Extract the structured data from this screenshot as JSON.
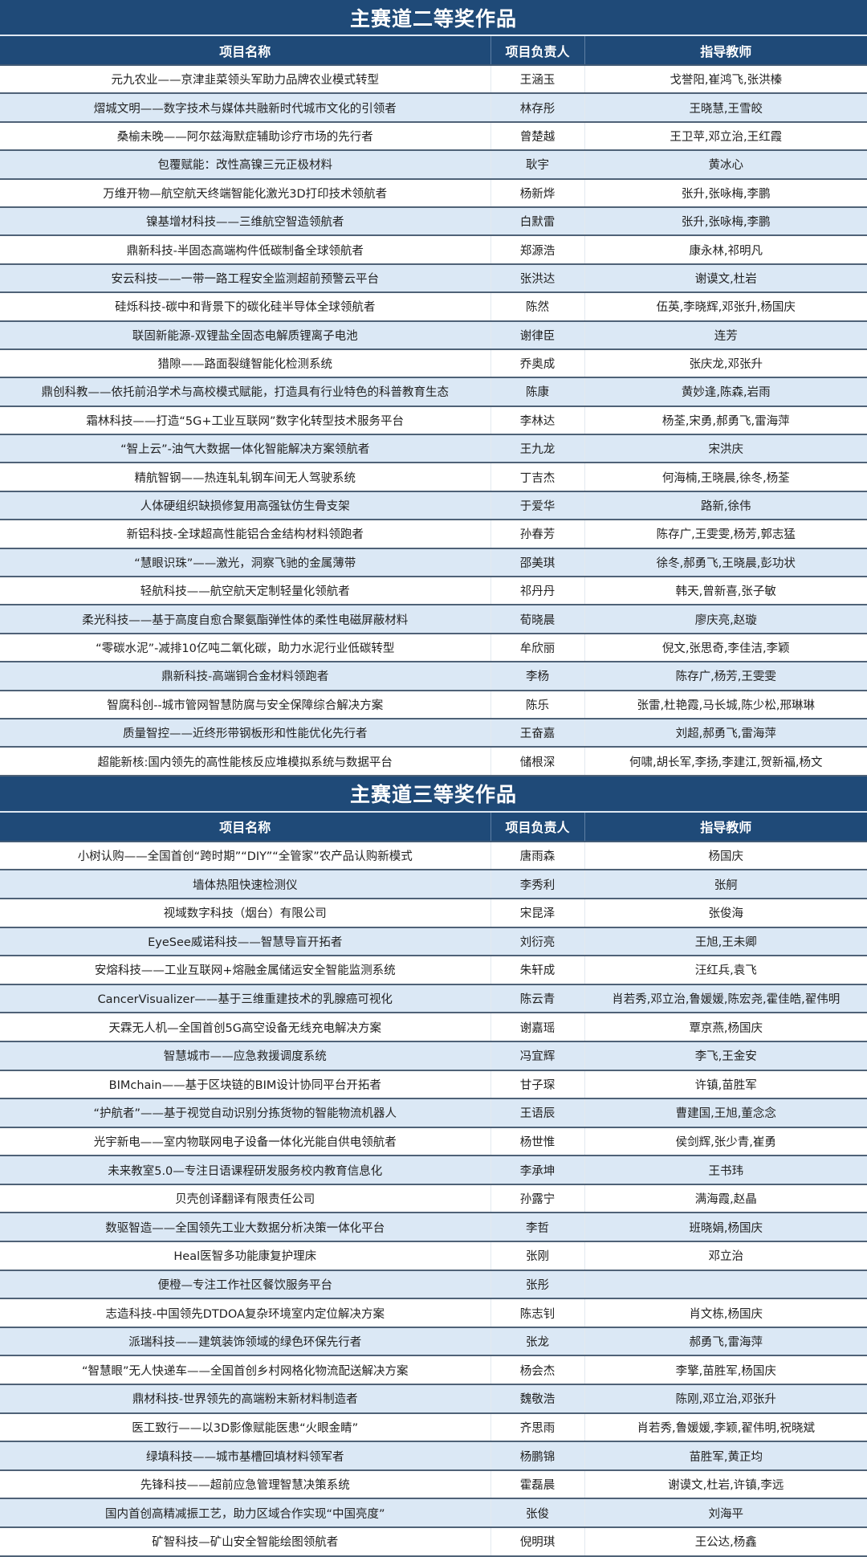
{
  "sections": [
    {
      "title": "主赛道二等奖作品",
      "headers": [
        "项目名称",
        "项目负责人",
        "指导教师"
      ],
      "rows": [
        [
          "元九农业——京津韭菜领头军助力品牌农业模式转型",
          "王涵玉",
          "戈誉阳,崔鸿飞,张洪榛"
        ],
        [
          "熠城文明——数字技术与媒体共融新时代城市文化的引领者",
          "林存彤",
          "王晓慧,王雪皎"
        ],
        [
          "桑榆未晚——阿尔兹海默症辅助诊疗市场的先行者",
          "曾楚越",
          "王卫苹,邓立治,王红霞"
        ],
        [
          "包覆赋能：改性高镍三元正极材料",
          "耿宇",
          "黄冰心"
        ],
        [
          "万维开物—航空航天终端智能化激光3D打印技术领航者",
          "杨新烨",
          "张升,张咏梅,李鹏"
        ],
        [
          "镍基增材科技——三维航空智造领航者",
          "白默雷",
          "张升,张咏梅,李鹏"
        ],
        [
          "鼎新科技-半固态高端构件低碳制备全球领航者",
          "郑源浩",
          "康永林,祁明凡"
        ],
        [
          "安云科技——一带一路工程安全监测超前预警云平台",
          "张洪达",
          "谢谟文,杜岩"
        ],
        [
          "硅烁科技-碳中和背景下的碳化硅半导体全球领航者",
          "陈然",
          "伍英,李晓辉,邓张升,杨国庆"
        ],
        [
          "联固新能源-双锂盐全固态电解质锂离子电池",
          "谢律臣",
          "连芳"
        ],
        [
          "猎隙——路面裂缝智能化检测系统",
          "乔奥成",
          "张庆龙,邓张升"
        ],
        [
          "鼎创科教——依托前沿学术与高校模式赋能，打造具有行业特色的科普教育生态",
          "陈康",
          "黄妙逢,陈森,岩雨"
        ],
        [
          "霜林科技——打造“5G+工业互联网”数字化转型技术服务平台",
          "李林达",
          "杨荃,宋勇,郝勇飞,雷海萍"
        ],
        [
          "“智上云”-油气大数据一体化智能解决方案领航者",
          "王九龙",
          "宋洪庆"
        ],
        [
          "精航智钢——热连轧轧钢车间无人驾驶系统",
          "丁吉杰",
          "何海楠,王晓晨,徐冬,杨荃"
        ],
        [
          "人体硬组织缺损修复用高强钛仿生骨支架",
          "于爱华",
          "路新,徐伟"
        ],
        [
          "新铝科技-全球超高性能铝合金结构材料领跑者",
          "孙春芳",
          "陈存广,王雯雯,杨芳,郭志猛"
        ],
        [
          "“慧眼识珠”——激光，洞察飞驰的金属薄带",
          "邵美琪",
          "徐冬,郝勇飞,王晓晨,彭功状"
        ],
        [
          "轻航科技——航空航天定制轻量化领航者",
          "祁丹丹",
          "韩天,曾新喜,张子敏"
        ],
        [
          "柔光科技——基于高度自愈合聚氨酯弹性体的柔性电磁屏蔽材料",
          "荀晓晨",
          "廖庆亮,赵璇"
        ],
        [
          "“零碳水泥”-减排10亿吨二氧化碳，助力水泥行业低碳转型",
          "牟欣丽",
          "倪文,张思奇,李佳洁,李颖"
        ],
        [
          "鼎新科技-高端铜合金材料领跑者",
          "李杨",
          "陈存广,杨芳,王雯雯"
        ],
        [
          "智腐科创--城市管网智慧防腐与安全保障综合解决方案",
          "陈乐",
          "张雷,杜艳霞,马长城,陈少松,邢琳琳"
        ],
        [
          "质量智控——近终形带钢板形和性能优化先行者",
          "王奋嘉",
          "刘超,郝勇飞,雷海萍"
        ],
        [
          "超能新核:国内领先的高性能核反应堆模拟系统与数据平台",
          "储根深",
          "何啸,胡长军,李扬,李建江,贺新福,杨文"
        ]
      ]
    },
    {
      "title": "主赛道三等奖作品",
      "headers": [
        "项目名称",
        "项目负责人",
        "指导教师"
      ],
      "rows": [
        [
          "小树认购——全国首创“跨时期”“DIY”“全管家”农产品认购新模式",
          "唐雨森",
          "杨国庆"
        ],
        [
          "墙体热阻快速检测仪",
          "李秀利",
          "张舸"
        ],
        [
          "视域数字科技（烟台）有限公司",
          "宋昆泽",
          "张俊海"
        ],
        [
          "EyeSee威诺科技——智慧导盲开拓者",
          "刘衍亮",
          "王旭,王未卿"
        ],
        [
          "安熔科技——工业互联网+熔融金属储运安全智能监测系统",
          "朱轩成",
          "汪红兵,袁飞"
        ],
        [
          "CancerVisualizer——基于三维重建技术的乳腺癌可视化",
          "陈云青",
          "肖若秀,邓立治,鲁媛媛,陈宏尧,霍佳皓,翟伟明"
        ],
        [
          "天霖无人机—全国首创5G高空设备无线充电解决方案",
          "谢嘉瑶",
          "覃京燕,杨国庆"
        ],
        [
          "智慧城市——应急救援调度系统",
          "冯宜辉",
          "李飞,王金安"
        ],
        [
          "BIMchain——基于区块链的BIM设计协同平台开拓者",
          "甘子琛",
          "许镇,苗胜军"
        ],
        [
          "“护航者”——基于视觉自动识别分拣货物的智能物流机器人",
          "王语辰",
          "曹建国,王旭,董念念"
        ],
        [
          "光宇新电——室内物联网电子设备一体化光能自供电领航者",
          "杨世惟",
          "侯剑辉,张少青,崔勇"
        ],
        [
          "未来教室5.0—专注日语课程研发服务校内教育信息化",
          "李承坤",
          "王书玮"
        ],
        [
          "贝壳创译翻译有限责任公司",
          "孙露宁",
          "满海霞,赵晶"
        ],
        [
          "数驱智造——全国领先工业大数据分析决策一体化平台",
          "李哲",
          "班晓娟,杨国庆"
        ],
        [
          "Heal医智多功能康复护理床",
          "张刚",
          "邓立治"
        ],
        [
          "便橙—专注工作社区餐饮服务平台",
          "张彤",
          ""
        ],
        [
          "志造科技-中国领先DTDOA复杂环境室内定位解决方案",
          "陈志钊",
          "肖文栋,杨国庆"
        ],
        [
          "派瑞科技——建筑装饰领域的绿色环保先行者",
          "张龙",
          "郝勇飞,雷海萍"
        ],
        [
          "“智慧眼”无人快递车——全国首创乡村网格化物流配送解决方案",
          "杨会杰",
          "李擎,苗胜军,杨国庆"
        ],
        [
          "鼎材科技-世界领先的高端粉末新材料制造者",
          "魏敬浩",
          "陈刚,邓立治,邓张升"
        ],
        [
          "医工致行——以3D影像赋能医患“火眼金睛”",
          "齐思雨",
          "肖若秀,鲁媛媛,李颖,翟伟明,祝晓斌"
        ],
        [
          "绿填科技——城市基槽回填材料领军者",
          "杨鹏锦",
          "苗胜军,黄正均"
        ],
        [
          "先锋科技——超前应急管理智慧决策系统",
          "霍磊晨",
          "谢谟文,杜岩,许镇,李远"
        ],
        [
          "国内首创高精减振工艺，助力区域合作实现“中国亮度”",
          "张俊",
          "刘海平"
        ],
        [
          "矿智科技—矿山安全智能绘图领航者",
          "倪明琪",
          "王公达,杨鑫"
        ]
      ]
    }
  ],
  "colors": {
    "header_bg": "#1f4a78",
    "alt_row_bg": "#dbe8f5",
    "row_bg": "#ffffff"
  }
}
